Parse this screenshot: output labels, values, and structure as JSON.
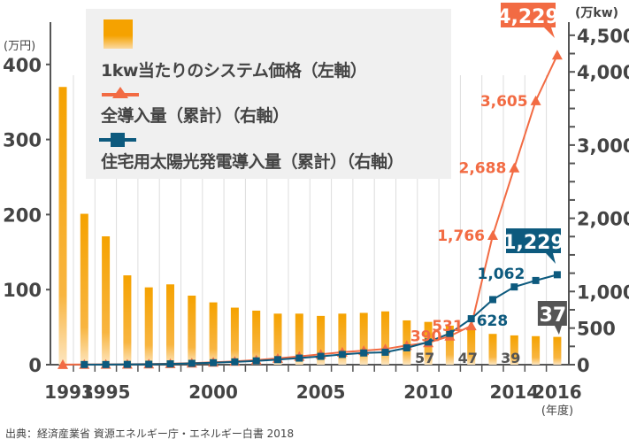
{
  "source": "出典：経済産業省 資源エネルギー庁・エネルギー白書 2018",
  "legend": {
    "price": "1kw当たりのシステム価格（左軸）",
    "total": "全導入量（累計）（右軸）",
    "residential": "住宅用太陽光発電導入量（累計）（右軸）"
  },
  "colors": {
    "bar": "#f5a200",
    "total": "#f26b43",
    "residential": "#0d5a7e",
    "grid": "#dddddd",
    "axis": "#555555",
    "label_dark": "#555555"
  },
  "chart_data": {
    "type": "bar+line",
    "categories": [
      1993,
      1994,
      1995,
      1996,
      1997,
      1998,
      1999,
      2000,
      2001,
      2002,
      2003,
      2004,
      2005,
      2006,
      2007,
      2008,
      2009,
      2010,
      2011,
      2012,
      2013,
      2014,
      2015,
      2016
    ],
    "x_tick_labels": [
      "1993",
      "1995",
      "2000",
      "2005",
      "2010",
      "2014",
      "2016"
    ],
    "x_unit": "(年度)",
    "left_axis": {
      "unit": "(万円)",
      "ylim": [
        0,
        400
      ],
      "ticks": [
        "0",
        "100",
        "200",
        "300",
        "400"
      ]
    },
    "right_axis": {
      "unit": "(万kw)",
      "ylim": [
        0,
        4500
      ],
      "ticks": [
        "0",
        "500",
        "1,000",
        "2,000",
        "3,000",
        "4,000",
        "4,500"
      ]
    },
    "grid": "vertical",
    "series": [
      {
        "name": "1kw当たりのシステム価格（左軸）",
        "type": "bar",
        "axis": "left",
        "values": [
          370,
          201,
          171,
          119,
          103,
          107,
          92,
          83,
          76,
          72,
          68,
          68,
          65,
          68,
          69,
          71,
          59,
          57,
          52,
          47,
          41,
          39,
          38,
          37
        ],
        "data_labels": {
          "2010": "57",
          "2012": "47",
          "2014": "39",
          "2016": "37"
        }
      },
      {
        "name": "全導入量（累計）（右軸）",
        "type": "line",
        "axis": "right",
        "marker": "triangle",
        "values": [
          2,
          3,
          4,
          6,
          9,
          13,
          21,
          33,
          45,
          64,
          86,
          113,
          142,
          171,
          192,
          214,
          263,
          300,
          390,
          531,
          1766,
          2688,
          3605,
          4229
        ],
        "data_labels": {
          "2011": "390",
          "2012": "531",
          "2013": "1,766",
          "2014": "2,688",
          "2015": "3,605",
          "2016": "4,229"
        }
      },
      {
        "name": "住宅用太陽光発電導入量（累計）（右軸）",
        "type": "line",
        "axis": "right",
        "marker": "square",
        "values": [
          null,
          2,
          2,
          4,
          6,
          11,
          18,
          27,
          38,
          52,
          69,
          90,
          114,
          140,
          160,
          170,
          230,
          310,
          427,
          628,
          889,
          1062,
          1150,
          1229
        ],
        "data_labels": {
          "2012": "628",
          "2014": "1,062",
          "2016": "1,229"
        }
      }
    ]
  }
}
